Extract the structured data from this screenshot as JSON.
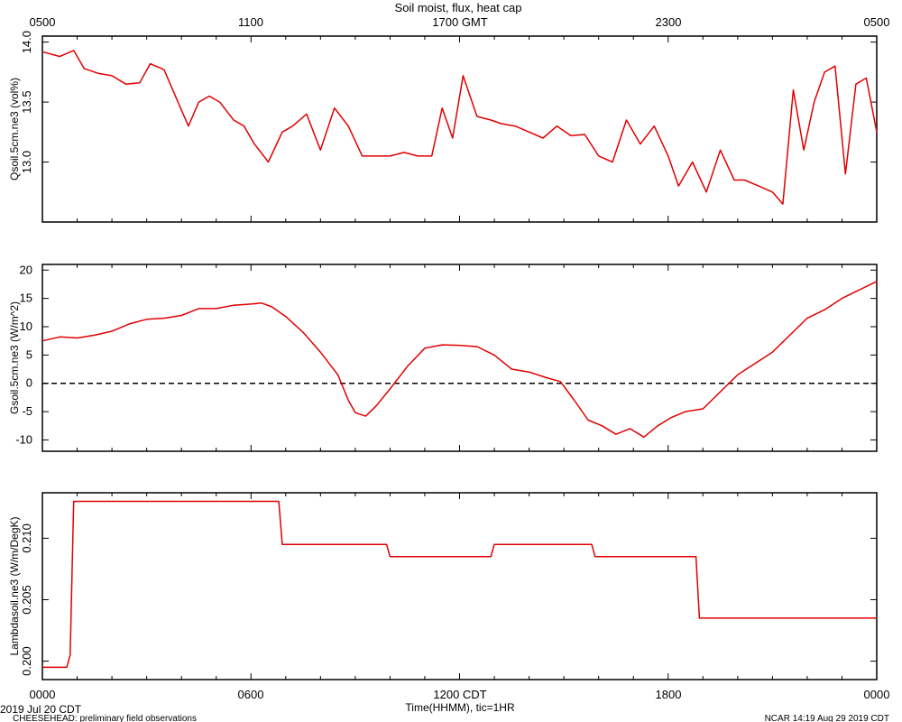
{
  "header": {
    "title": "Soil moist, flux, heat cap",
    "top_axis_ticks": [
      "0500",
      "1100",
      "1700 GMT",
      "2300",
      "0500"
    ]
  },
  "bottom_axis": {
    "ticks": [
      "0000",
      "0600",
      "1200 CDT",
      "1800",
      "0000"
    ],
    "label": "Time(HHMM), tic=1HR"
  },
  "footer": {
    "date_label": "2019 Jul 20 CDT",
    "project_label": "CHEESEHEAD: preliminary field observations",
    "credit_label": "NCAR 14:19 Aug 29 2019 CDT"
  },
  "colors": {
    "series": "#e00000",
    "axes": "#000000",
    "zero_line": "#000000"
  },
  "chart_data": [
    {
      "type": "line",
      "ylabel": "Qsoil.5cm.ne3 (vol%)",
      "ylim": [
        12.5,
        14.05
      ],
      "yticks": [
        13.0,
        13.5,
        14.0
      ],
      "ytick_labels": [
        "13.0",
        "13.5",
        "14.0"
      ],
      "x_hours": [
        0,
        0.5,
        0.9,
        1.2,
        1.6,
        2.0,
        2.4,
        2.8,
        3.1,
        3.5,
        3.9,
        4.2,
        4.5,
        4.8,
        5.1,
        5.5,
        5.8,
        6.1,
        6.5,
        6.9,
        7.2,
        7.6,
        8.0,
        8.4,
        8.8,
        9.2,
        9.6,
        10.0,
        10.4,
        10.8,
        11.2,
        11.5,
        11.8,
        12.1,
        12.5,
        12.9,
        13.2,
        13.6,
        14.0,
        14.4,
        14.8,
        15.2,
        15.6,
        16.0,
        16.4,
        16.8,
        17.2,
        17.6,
        18.0,
        18.3,
        18.7,
        19.1,
        19.5,
        19.9,
        20.2,
        20.6,
        21.0,
        21.3,
        21.6,
        21.9,
        22.2,
        22.5,
        22.8,
        23.1,
        23.4,
        23.7,
        24.0
      ],
      "series": [
        {
          "values": [
            13.92,
            13.88,
            13.93,
            13.78,
            13.74,
            13.72,
            13.65,
            13.66,
            13.82,
            13.77,
            13.5,
            13.3,
            13.5,
            13.55,
            13.5,
            13.35,
            13.3,
            13.15,
            13.0,
            13.25,
            13.3,
            13.4,
            13.1,
            13.45,
            13.3,
            13.05,
            13.05,
            13.05,
            13.08,
            13.05,
            13.05,
            13.45,
            13.2,
            13.72,
            13.38,
            13.35,
            13.32,
            13.3,
            13.25,
            13.2,
            13.3,
            13.22,
            13.23,
            13.05,
            13.0,
            13.35,
            13.15,
            13.3,
            13.05,
            12.8,
            13.0,
            12.75,
            13.1,
            12.85,
            12.85,
            12.8,
            12.75,
            12.65,
            13.6,
            13.1,
            13.5,
            13.75,
            13.8,
            12.9,
            13.65,
            13.7,
            13.25
          ]
        }
      ]
    },
    {
      "type": "line",
      "ylabel": "Gsoil.5cm.ne3 (W/m^2)",
      "ylim": [
        -12,
        21
      ],
      "yticks": [
        -10,
        -5,
        0,
        5,
        10,
        15,
        20
      ],
      "ytick_labels": [
        "-10",
        "-5",
        "0",
        "5",
        "10",
        "15",
        "20"
      ],
      "reference_line": 0,
      "x_hours": [
        0,
        0.5,
        1.0,
        1.5,
        2.0,
        2.5,
        3.0,
        3.5,
        4.0,
        4.5,
        5.0,
        5.5,
        6.0,
        6.3,
        6.6,
        7.0,
        7.5,
        8.0,
        8.5,
        8.8,
        9.0,
        9.3,
        9.6,
        10.0,
        10.5,
        11.0,
        11.5,
        12.0,
        12.5,
        13.0,
        13.5,
        14.0,
        14.5,
        14.9,
        15.3,
        15.7,
        16.1,
        16.5,
        16.9,
        17.3,
        17.7,
        18.1,
        18.5,
        19.0,
        19.5,
        20.0,
        20.5,
        21.0,
        21.5,
        22.0,
        22.5,
        23.0,
        23.5,
        24.0
      ],
      "series": [
        {
          "values": [
            7.5,
            8.2,
            8.0,
            8.5,
            9.2,
            10.5,
            11.3,
            11.5,
            12.0,
            13.2,
            13.2,
            13.8,
            14.0,
            14.2,
            13.5,
            11.8,
            9.0,
            5.5,
            1.5,
            -3.0,
            -5.2,
            -5.8,
            -4.0,
            -1.0,
            3.0,
            6.2,
            6.8,
            6.7,
            6.5,
            5.0,
            2.5,
            2.0,
            1.0,
            0.3,
            -3.0,
            -6.5,
            -7.5,
            -9.0,
            -8.0,
            -9.5,
            -7.5,
            -6.0,
            -5.0,
            -4.5,
            -1.5,
            1.5,
            3.5,
            5.5,
            8.5,
            11.5,
            13.0,
            15.0,
            16.5,
            18.0
          ]
        }
      ]
    },
    {
      "type": "line",
      "ylabel": "Lambdasoil.ne3 (W/m/DegK)",
      "ylim": [
        0.1985,
        0.2137
      ],
      "yticks": [
        0.2,
        0.205,
        0.21
      ],
      "ytick_labels": [
        "0.200",
        "0.205",
        "0.210"
      ],
      "x_hours": [
        0,
        0.7,
        0.8,
        0.9,
        6.8,
        6.9,
        9.9,
        10.0,
        12.9,
        13.0,
        15.8,
        15.9,
        18.8,
        18.9,
        24.0
      ],
      "series": [
        {
          "values": [
            0.1995,
            0.1995,
            0.2005,
            0.213,
            0.213,
            0.2095,
            0.2095,
            0.2085,
            0.2085,
            0.2095,
            0.2095,
            0.2085,
            0.2085,
            0.2035,
            0.2035
          ]
        }
      ]
    }
  ]
}
